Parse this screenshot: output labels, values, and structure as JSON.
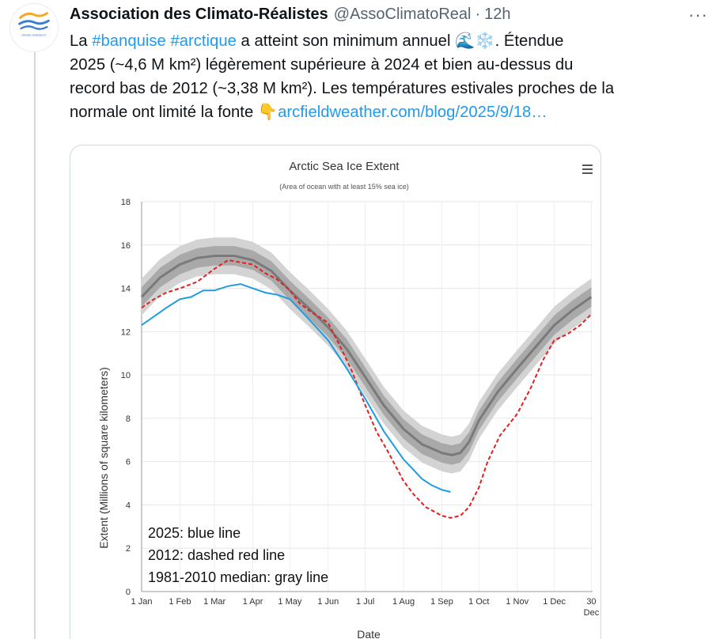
{
  "tweet": {
    "display_name": "Association des Climato-Réalistes",
    "handle": "@AssoClimatoReal",
    "separator": "·",
    "time": "12h",
    "more_label": "···",
    "avatar_caption": "climato-realistes.fr",
    "line1_prefix": "La ",
    "hashtag1": "#banquise",
    "hashtag2": "#arctique",
    "line1_suffix": " a atteint son minimum annuel ",
    "emoji1": "🌊",
    "emoji2": "❄️",
    "line1_end": ". Étendue",
    "line2": "2025 (~4,6 M km²) légèrement supérieure à 2024 et bien au-dessus du",
    "line3": "record bas de 2012 (~3,38 M km²). Les températures estivales proches de la",
    "line4_prefix": "normale ont limité la fonte ",
    "emoji3": "👇",
    "link": "arcfieldweather.com/blog/2025/9/18…"
  },
  "chart_data": {
    "type": "line",
    "title": "Arctic Sea Ice Extent",
    "subtitle": "(Area of ocean with at least 15% sea ice)",
    "xlabel": "Date",
    "ylabel": "Extent (Millions of square kilometers)",
    "ylim": [
      0,
      18
    ],
    "yticks": [
      0,
      2,
      4,
      6,
      8,
      10,
      12,
      14,
      16,
      18
    ],
    "xlim": [
      0,
      365
    ],
    "xticks": [
      {
        "day": 0,
        "label": "1 Jan"
      },
      {
        "day": 31,
        "label": "1 Feb"
      },
      {
        "day": 59,
        "label": "1 Mar"
      },
      {
        "day": 90,
        "label": "1 Apr"
      },
      {
        "day": 120,
        "label": "1 May"
      },
      {
        "day": 151,
        "label": "1 Jun"
      },
      {
        "day": 181,
        "label": "1 Jul"
      },
      {
        "day": 212,
        "label": "1 Aug"
      },
      {
        "day": 243,
        "label": "1 Sep"
      },
      {
        "day": 273,
        "label": "1 Oct"
      },
      {
        "day": 304,
        "label": "1 Nov"
      },
      {
        "day": 334,
        "label": "1 Dec"
      },
      {
        "day": 364,
        "label": "30"
      }
    ],
    "xtick_extra": "Dec",
    "menu_icon": "hamburger-menu-icon",
    "legend": [
      "2025: blue line",
      "2012: dashed red line",
      "1981-2010 median: gray line"
    ],
    "colors": {
      "2025": "#1f9ce0",
      "2012": "#e02020",
      "median": "#7a7a7a",
      "band_outer": "#d3d3d3",
      "band_inner": "#a9a9a9"
    },
    "series": [
      {
        "name": "1981-2010 median",
        "x": [
          0,
          15,
          31,
          45,
          59,
          75,
          90,
          105,
          120,
          135,
          151,
          166,
          181,
          196,
          212,
          227,
          243,
          251,
          258,
          265,
          273,
          288,
          304,
          319,
          334,
          349,
          364
        ],
        "y": [
          13.6,
          14.5,
          15.1,
          15.4,
          15.5,
          15.5,
          15.3,
          14.8,
          13.9,
          13.1,
          12.2,
          11.2,
          9.9,
          8.6,
          7.5,
          6.8,
          6.4,
          6.3,
          6.4,
          6.9,
          7.9,
          9.2,
          10.3,
          11.3,
          12.3,
          13.0,
          13.6
        ]
      },
      {
        "name": "2012",
        "x": [
          0,
          10,
          20,
          31,
          45,
          59,
          70,
          80,
          90,
          100,
          110,
          120,
          128,
          135,
          151,
          160,
          170,
          181,
          190,
          200,
          212,
          220,
          230,
          243,
          250,
          258,
          265,
          273,
          280,
          290,
          304,
          315,
          325,
          334,
          345,
          355,
          364
        ],
        "y": [
          13.1,
          13.5,
          13.8,
          14.0,
          14.3,
          14.9,
          15.3,
          15.2,
          15.1,
          14.7,
          14.4,
          13.9,
          13.3,
          13.0,
          12.4,
          11.4,
          10.2,
          8.6,
          7.4,
          6.4,
          5.1,
          4.5,
          3.9,
          3.5,
          3.4,
          3.5,
          3.9,
          4.8,
          6.0,
          7.2,
          8.2,
          9.4,
          10.7,
          11.6,
          11.9,
          12.3,
          12.8
        ]
      },
      {
        "name": "2025",
        "x": [
          0,
          10,
          20,
          31,
          40,
          50,
          59,
          70,
          80,
          90,
          100,
          110,
          120,
          135,
          151,
          166,
          181,
          196,
          212,
          227,
          235,
          243,
          250
        ],
        "y": [
          12.3,
          12.7,
          13.1,
          13.5,
          13.6,
          13.9,
          13.9,
          14.1,
          14.2,
          14.0,
          13.8,
          13.7,
          13.5,
          12.6,
          11.6,
          10.3,
          8.9,
          7.4,
          6.1,
          5.2,
          4.9,
          4.7,
          4.6
        ]
      }
    ]
  }
}
